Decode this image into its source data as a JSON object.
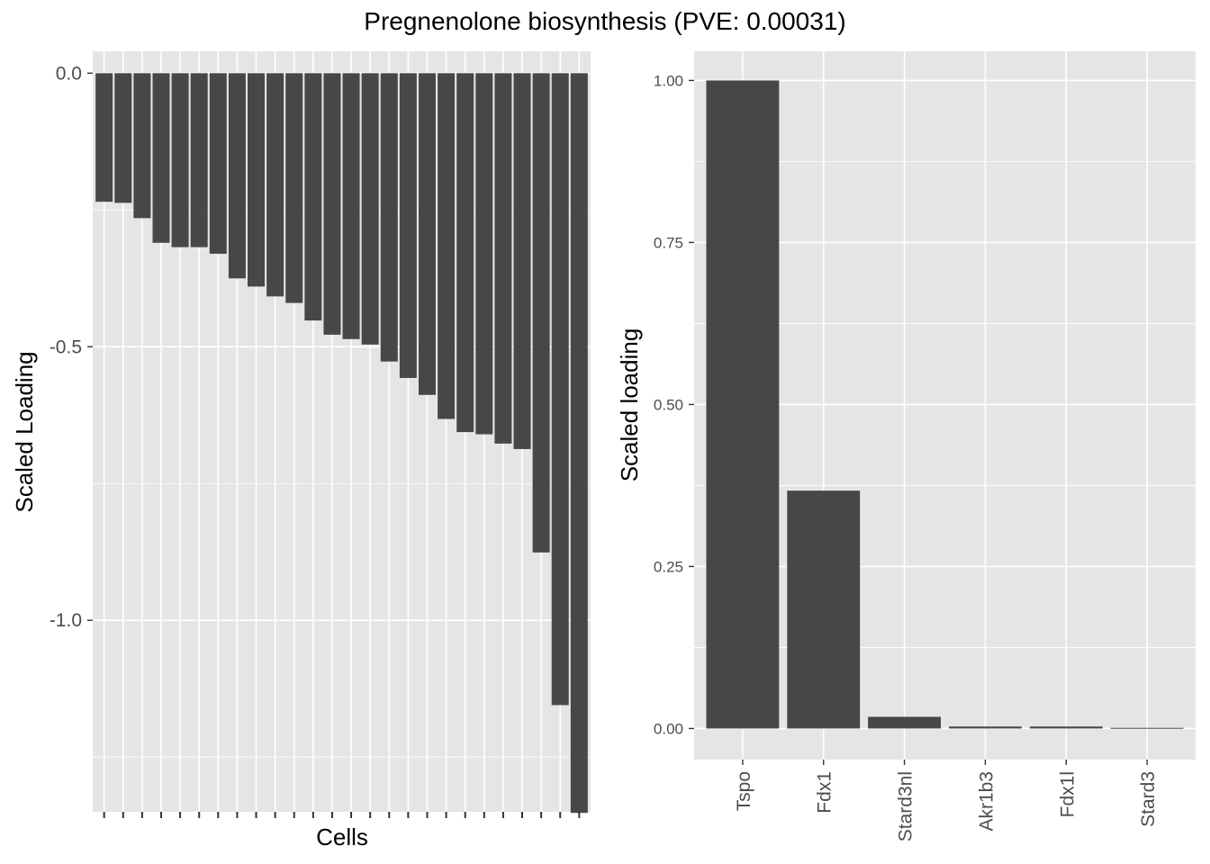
{
  "title": "Pregnenolone biosynthesis (PVE: 0.00031)",
  "colors": {
    "panel_bg": "#e5e5e5",
    "grid_major": "#ffffff",
    "bar_fill": "#474747",
    "tick_text": "#4d4d4d",
    "axis_title": "#000000"
  },
  "chart_data": [
    {
      "type": "bar",
      "orientation": "vertical",
      "xlabel": "Cells",
      "ylabel": "Scaled Loading",
      "ylim": [
        -1.35,
        0.04
      ],
      "y_ticks": [
        0.0,
        -0.5,
        -1.0
      ],
      "y_tick_labels": [
        "0.0",
        "-0.5",
        "-1.0"
      ],
      "x_tick_labels_shown": false,
      "grid": true,
      "values": [
        -0.235,
        -0.237,
        -0.265,
        -0.31,
        -0.318,
        -0.318,
        -0.33,
        -0.375,
        -0.39,
        -0.408,
        -0.42,
        -0.452,
        -0.478,
        -0.486,
        -0.496,
        -0.527,
        -0.557,
        -0.588,
        -0.632,
        -0.656,
        -0.66,
        -0.677,
        -0.687,
        -0.876,
        -1.155,
        -1.352
      ]
    },
    {
      "type": "bar",
      "orientation": "vertical",
      "xlabel": "",
      "ylabel": "Scaled loading",
      "ylim": [
        -0.048,
        1.045
      ],
      "y_ticks": [
        0.0,
        0.25,
        0.5,
        0.75,
        1.0
      ],
      "y_tick_labels": [
        "0.00",
        "0.25",
        "0.50",
        "0.75",
        "1.00"
      ],
      "categories": [
        "Tspo",
        "Fdx1",
        "Stard3nl",
        "Akr1b3",
        "Fdx1l",
        "Stard3"
      ],
      "values": [
        1.0,
        0.367,
        0.018,
        0.003,
        0.003,
        0.001
      ],
      "grid": true
    }
  ]
}
